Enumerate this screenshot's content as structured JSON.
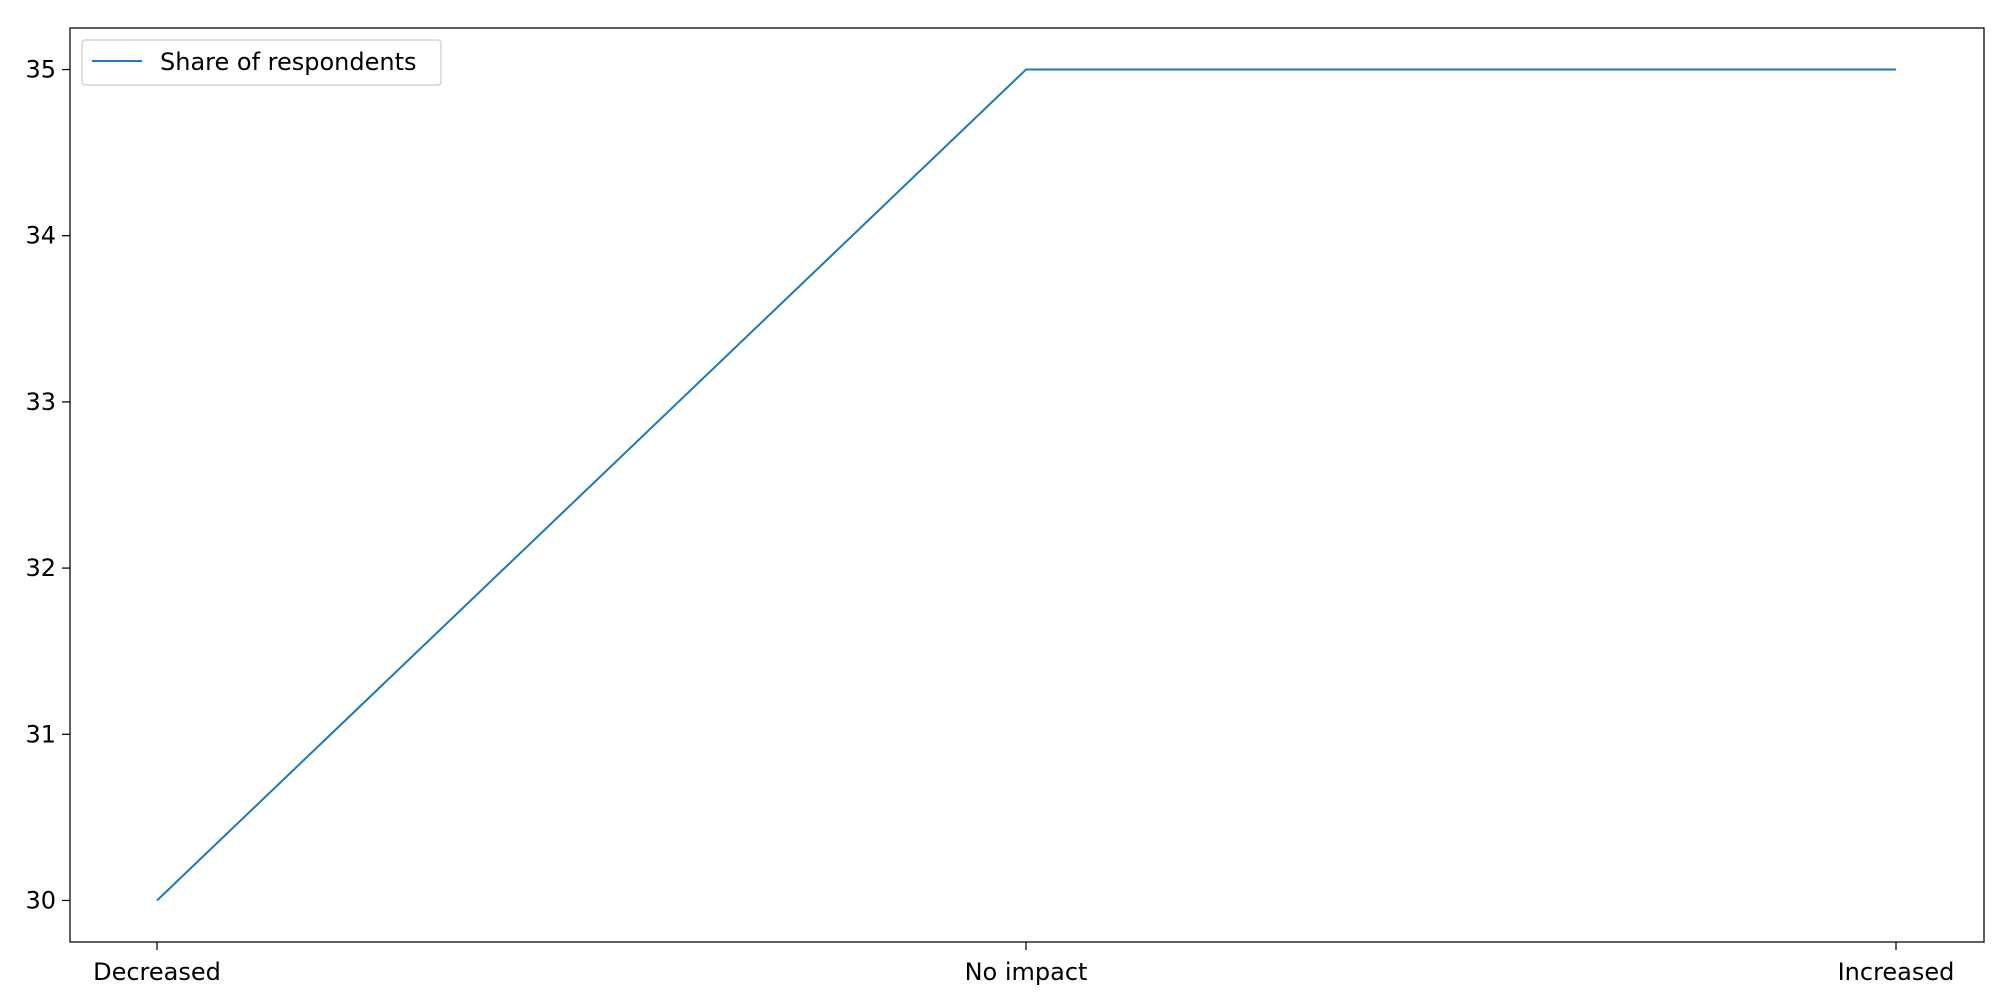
{
  "chart_data": {
    "type": "line",
    "title": "",
    "xlabel": "",
    "ylabel": "",
    "categories": [
      "Decreased",
      "No impact",
      "Increased"
    ],
    "series": [
      {
        "name": "Share of respondents",
        "values": [
          30,
          35,
          35
        ],
        "color": "#1f77b4"
      }
    ],
    "ylim": [
      29.75,
      35.25
    ],
    "yticks": [
      "30",
      "31",
      "32",
      "33",
      "34",
      "35"
    ],
    "legend": "upper left",
    "grid": false
  }
}
